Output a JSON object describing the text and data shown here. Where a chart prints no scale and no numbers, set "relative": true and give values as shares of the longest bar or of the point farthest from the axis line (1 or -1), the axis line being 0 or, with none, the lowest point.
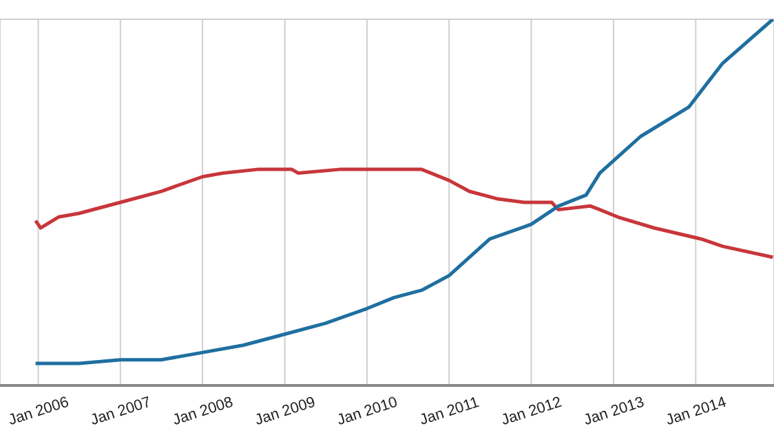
{
  "chart_data": {
    "type": "line",
    "relative": true,
    "grid": true,
    "tick_labels": "x",
    "marker": "none",
    "line_style": "solid",
    "xlim": [
      "2005-07-15",
      "2014-12-15"
    ],
    "xticks": [
      {
        "value": "2006-01-01",
        "label": "Jan 2006"
      },
      {
        "value": "2007-01-01",
        "label": "Jan 2007"
      },
      {
        "value": "2008-01-01",
        "label": "Jan 2008"
      },
      {
        "value": "2009-01-01",
        "label": "Jan 2009"
      },
      {
        "value": "2010-01-01",
        "label": "Jan 2010"
      },
      {
        "value": "2011-01-01",
        "label": "Jan 2011"
      },
      {
        "value": "2012-01-01",
        "label": "Jan 2012"
      },
      {
        "value": "2013-01-01",
        "label": "Jan 2013"
      },
      {
        "value": "2014-01-01",
        "label": "Jan 2014"
      }
    ],
    "series": [
      {
        "color": "#c8363a",
        "x": [
          "2005-12-20",
          "2006-01-12",
          "2006-04",
          "2006-07",
          "2007-01",
          "2007-07",
          "2008-01",
          "2008-04",
          "2008-09",
          "2009-02",
          "2009-03",
          "2009-09",
          "2010-01",
          "2010-05",
          "2010-09",
          "2011-01",
          "2011-04",
          "2011-08",
          "2011-12",
          "2012-04",
          "2012-05",
          "2012-09-20",
          "2012-11",
          "2013-01-20",
          "2013-07",
          "2014-01-25",
          "2014-05",
          "2014-12-10"
        ],
        "values": [
          0.45,
          0.43,
          0.46,
          0.47,
          0.5,
          0.53,
          0.57,
          0.58,
          0.59,
          0.59,
          0.58,
          0.59,
          0.59,
          0.59,
          0.59,
          0.56,
          0.53,
          0.51,
          0.5,
          0.5,
          0.48,
          0.49,
          0.48,
          0.46,
          0.43,
          0.4,
          0.38,
          0.35
        ]
      },
      {
        "color": "#1f6fa0",
        "x": [
          "2005-12-20",
          "2006-07",
          "2007-01",
          "2007-07",
          "2008-01",
          "2008-07",
          "2009-01",
          "2009-07",
          "2010-01",
          "2010-05",
          "2010-09",
          "2011-01",
          "2011-04",
          "2011-07",
          "2012-01",
          "2012-05",
          "2012-09",
          "2012-11",
          "2013-05",
          "2013-12",
          "2014-05",
          "2014-12-10"
        ],
        "values": [
          0.06,
          0.06,
          0.07,
          0.07,
          0.09,
          0.11,
          0.14,
          0.17,
          0.21,
          0.24,
          0.26,
          0.3,
          0.35,
          0.4,
          0.44,
          0.49,
          0.52,
          0.58,
          0.68,
          0.76,
          0.88,
          1
        ]
      }
    ]
  }
}
